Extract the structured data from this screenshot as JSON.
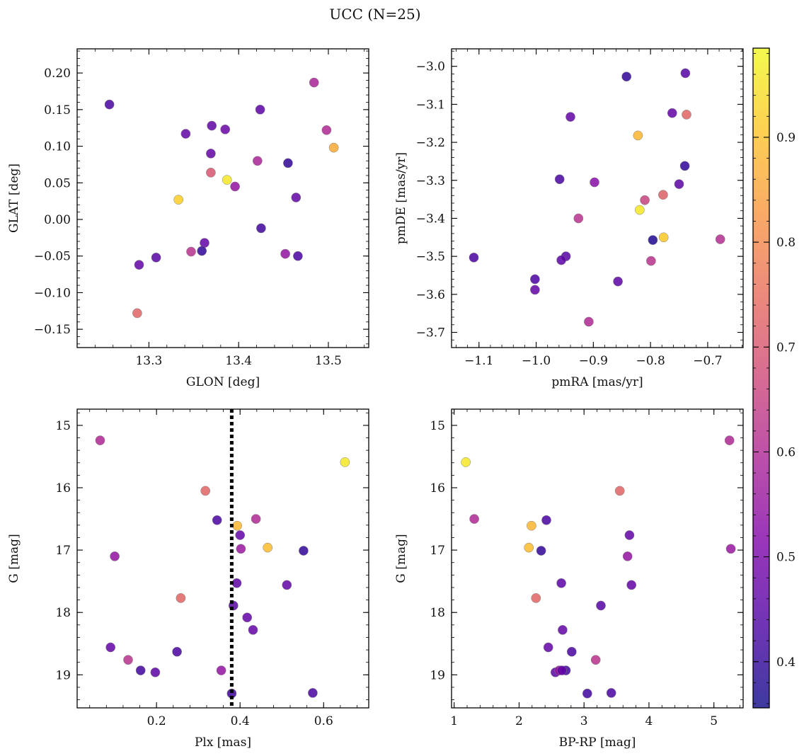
{
  "figure": {
    "title": "UCC (N=25)",
    "colormap": "plasma",
    "colorbar": {
      "vmin": 0.356,
      "vmax": 0.985,
      "ticks": [
        0.4,
        0.5,
        0.6,
        0.7,
        0.8,
        0.9
      ],
      "tick_labels": [
        "0.4",
        "0.5",
        "0.6",
        "0.7",
        "0.8",
        "0.9"
      ]
    }
  },
  "chart_data": [
    {
      "type": "scatter",
      "id": "glon-glat",
      "xlabel": "GLON [deg]",
      "ylabel": "GLAT [deg]",
      "xlim": [
        13.22,
        13.545
      ],
      "ylim": [
        -0.175,
        0.233
      ],
      "xticks": [
        13.3,
        13.4,
        13.5
      ],
      "xtick_labels": [
        "13.3",
        "13.4",
        "13.5"
      ],
      "xminor_step": 0.02,
      "yticks": [
        -0.15,
        -0.1,
        -0.05,
        0.0,
        0.05,
        0.1,
        0.15,
        0.2
      ],
      "ytick_labels": [
        "−0.15",
        "−0.10",
        "−0.05",
        "0.00",
        "0.05",
        "0.10",
        "0.15",
        "0.20"
      ],
      "yminor_step": 0.01,
      "points": [
        {
          "x": 13.256,
          "y": 0.157,
          "c": 0.43
        },
        {
          "x": 13.341,
          "y": 0.117,
          "c": 0.47
        },
        {
          "x": 13.37,
          "y": 0.128,
          "c": 0.47
        },
        {
          "x": 13.385,
          "y": 0.123,
          "c": 0.48
        },
        {
          "x": 13.424,
          "y": 0.15,
          "c": 0.46
        },
        {
          "x": 13.484,
          "y": 0.187,
          "c": 0.59
        },
        {
          "x": 13.498,
          "y": 0.122,
          "c": 0.6
        },
        {
          "x": 13.506,
          "y": 0.098,
          "c": 0.86
        },
        {
          "x": 13.369,
          "y": 0.09,
          "c": 0.47
        },
        {
          "x": 13.421,
          "y": 0.08,
          "c": 0.59
        },
        {
          "x": 13.455,
          "y": 0.077,
          "c": 0.4
        },
        {
          "x": 13.369,
          "y": 0.064,
          "c": 0.7
        },
        {
          "x": 13.387,
          "y": 0.054,
          "c": 0.96
        },
        {
          "x": 13.396,
          "y": 0.045,
          "c": 0.55
        },
        {
          "x": 13.333,
          "y": 0.027,
          "c": 0.92
        },
        {
          "x": 13.464,
          "y": 0.03,
          "c": 0.47
        },
        {
          "x": 13.425,
          "y": -0.012,
          "c": 0.42
        },
        {
          "x": 13.362,
          "y": -0.032,
          "c": 0.47
        },
        {
          "x": 13.347,
          "y": -0.044,
          "c": 0.62
        },
        {
          "x": 13.359,
          "y": -0.043,
          "c": 0.4
        },
        {
          "x": 13.452,
          "y": -0.047,
          "c": 0.55
        },
        {
          "x": 13.466,
          "y": -0.05,
          "c": 0.43
        },
        {
          "x": 13.308,
          "y": -0.052,
          "c": 0.45
        },
        {
          "x": 13.289,
          "y": -0.062,
          "c": 0.47
        },
        {
          "x": 13.287,
          "y": -0.128,
          "c": 0.73
        }
      ]
    },
    {
      "type": "scatter",
      "id": "pmra-pmde",
      "xlabel": "pmRA [mas/yr]",
      "ylabel": "pmDE [mas/yr]",
      "xlim": [
        -1.148,
        -0.638
      ],
      "ylim": [
        -3.74,
        -2.954
      ],
      "xticks": [
        -1.1,
        -1.0,
        -0.9,
        -0.8,
        -0.7
      ],
      "xtick_labels": [
        "−1.1",
        "−1.0",
        "−0.9",
        "−0.8",
        "−0.7"
      ],
      "xminor_step": 0.02,
      "yticks": [
        -3.7,
        -3.6,
        -3.5,
        -3.4,
        -3.3,
        -3.2,
        -3.1,
        -3.0
      ],
      "ytick_labels": [
        "−3.7",
        "−3.6",
        "−3.5",
        "−3.4",
        "−3.3",
        "−3.2",
        "−3.1",
        "−3.0"
      ],
      "yminor_step": 0.02,
      "points": [
        {
          "x": -0.842,
          "y": -3.027,
          "c": 0.4
        },
        {
          "x": -0.739,
          "y": -3.018,
          "c": 0.45
        },
        {
          "x": -0.94,
          "y": -3.133,
          "c": 0.47
        },
        {
          "x": -0.762,
          "y": -3.123,
          "c": 0.47
        },
        {
          "x": -0.737,
          "y": -3.127,
          "c": 0.73
        },
        {
          "x": -0.822,
          "y": -3.182,
          "c": 0.88
        },
        {
          "x": -0.959,
          "y": -3.297,
          "c": 0.43
        },
        {
          "x": -0.74,
          "y": -3.262,
          "c": 0.4
        },
        {
          "x": -0.898,
          "y": -3.305,
          "c": 0.53
        },
        {
          "x": -0.75,
          "y": -3.31,
          "c": 0.46
        },
        {
          "x": -0.778,
          "y": -3.338,
          "c": 0.72
        },
        {
          "x": -0.81,
          "y": -3.352,
          "c": 0.66
        },
        {
          "x": -0.819,
          "y": -3.378,
          "c": 0.96
        },
        {
          "x": -0.926,
          "y": -3.4,
          "c": 0.62
        },
        {
          "x": -0.777,
          "y": -3.45,
          "c": 0.91
        },
        {
          "x": -0.796,
          "y": -3.457,
          "c": 0.38
        },
        {
          "x": -0.678,
          "y": -3.455,
          "c": 0.61
        },
        {
          "x": -1.109,
          "y": -3.503,
          "c": 0.43
        },
        {
          "x": -0.948,
          "y": -3.5,
          "c": 0.45
        },
        {
          "x": -0.956,
          "y": -3.51,
          "c": 0.46
        },
        {
          "x": -0.799,
          "y": -3.512,
          "c": 0.62
        },
        {
          "x": -1.002,
          "y": -3.56,
          "c": 0.43
        },
        {
          "x": -0.857,
          "y": -3.566,
          "c": 0.46
        },
        {
          "x": -1.002,
          "y": -3.588,
          "c": 0.47
        },
        {
          "x": -0.908,
          "y": -3.672,
          "c": 0.6
        }
      ]
    },
    {
      "type": "scatter",
      "id": "plx-g",
      "xlabel": "Plx [mas]",
      "ylabel": "G [mag]",
      "xlim": [
        0.01,
        0.708
      ],
      "ylim": [
        19.53,
        14.74
      ],
      "y_inverted": true,
      "xticks": [
        0.2,
        0.4,
        0.6
      ],
      "xtick_labels": [
        "0.2",
        "0.4",
        "0.6"
      ],
      "xminor_step": 0.04,
      "yticks": [
        15,
        16,
        17,
        18,
        19
      ],
      "ytick_labels": [
        "15",
        "16",
        "17",
        "18",
        "19"
      ],
      "yminor_step": 0.2,
      "vline": {
        "x": 0.38,
        "style": "dotted",
        "color": "#000000"
      },
      "points": [
        {
          "x": 0.065,
          "y": 15.24,
          "c": 0.6
        },
        {
          "x": 0.651,
          "y": 15.59,
          "c": 0.96
        },
        {
          "x": 0.317,
          "y": 16.05,
          "c": 0.73
        },
        {
          "x": 0.345,
          "y": 16.52,
          "c": 0.43
        },
        {
          "x": 0.438,
          "y": 16.5,
          "c": 0.6
        },
        {
          "x": 0.393,
          "y": 16.61,
          "c": 0.88
        },
        {
          "x": 0.4,
          "y": 16.76,
          "c": 0.47
        },
        {
          "x": 0.466,
          "y": 16.96,
          "c": 0.89
        },
        {
          "x": 0.402,
          "y": 16.98,
          "c": 0.56
        },
        {
          "x": 0.552,
          "y": 17.01,
          "c": 0.4
        },
        {
          "x": 0.1,
          "y": 17.1,
          "c": 0.55
        },
        {
          "x": 0.392,
          "y": 17.53,
          "c": 0.46
        },
        {
          "x": 0.512,
          "y": 17.56,
          "c": 0.47
        },
        {
          "x": 0.258,
          "y": 17.77,
          "c": 0.73
        },
        {
          "x": 0.384,
          "y": 17.89,
          "c": 0.45
        },
        {
          "x": 0.417,
          "y": 18.08,
          "c": 0.47
        },
        {
          "x": 0.431,
          "y": 18.28,
          "c": 0.47
        },
        {
          "x": 0.09,
          "y": 18.56,
          "c": 0.47
        },
        {
          "x": 0.249,
          "y": 18.63,
          "c": 0.43
        },
        {
          "x": 0.132,
          "y": 18.76,
          "c": 0.62
        },
        {
          "x": 0.162,
          "y": 18.93,
          "c": 0.42
        },
        {
          "x": 0.197,
          "y": 18.96,
          "c": 0.46
        },
        {
          "x": 0.355,
          "y": 18.93,
          "c": 0.55
        },
        {
          "x": 0.38,
          "y": 19.3,
          "c": 0.42
        },
        {
          "x": 0.574,
          "y": 19.29,
          "c": 0.43
        }
      ]
    },
    {
      "type": "scatter",
      "id": "bprp-g",
      "xlabel": "BP-RP [mag]",
      "ylabel": "G [mag]",
      "xlim": [
        0.96,
        5.45
      ],
      "ylim": [
        19.53,
        14.74
      ],
      "y_inverted": true,
      "xticks": [
        1,
        2,
        3,
        4,
        5
      ],
      "xtick_labels": [
        "1",
        "2",
        "3",
        "4",
        "5"
      ],
      "xminor_step": 0.2,
      "yticks": [
        15,
        16,
        17,
        18,
        19
      ],
      "ytick_labels": [
        "15",
        "16",
        "17",
        "18",
        "19"
      ],
      "yminor_step": 0.2,
      "points": [
        {
          "x": 1.18,
          "y": 15.59,
          "c": 0.96
        },
        {
          "x": 5.24,
          "y": 15.24,
          "c": 0.6
        },
        {
          "x": 3.55,
          "y": 16.05,
          "c": 0.73
        },
        {
          "x": 1.31,
          "y": 16.5,
          "c": 0.6
        },
        {
          "x": 2.42,
          "y": 16.52,
          "c": 0.43
        },
        {
          "x": 2.19,
          "y": 16.61,
          "c": 0.88
        },
        {
          "x": 3.7,
          "y": 16.76,
          "c": 0.47
        },
        {
          "x": 2.15,
          "y": 16.96,
          "c": 0.89
        },
        {
          "x": 2.34,
          "y": 17.01,
          "c": 0.4
        },
        {
          "x": 5.26,
          "y": 16.98,
          "c": 0.56
        },
        {
          "x": 3.67,
          "y": 17.1,
          "c": 0.55
        },
        {
          "x": 2.65,
          "y": 17.53,
          "c": 0.46
        },
        {
          "x": 3.73,
          "y": 17.56,
          "c": 0.47
        },
        {
          "x": 2.26,
          "y": 17.77,
          "c": 0.73
        },
        {
          "x": 3.26,
          "y": 17.89,
          "c": 0.45
        },
        {
          "x": 2.67,
          "y": 18.28,
          "c": 0.47
        },
        {
          "x": 2.45,
          "y": 18.56,
          "c": 0.47
        },
        {
          "x": 2.81,
          "y": 18.63,
          "c": 0.43
        },
        {
          "x": 3.18,
          "y": 18.76,
          "c": 0.62
        },
        {
          "x": 2.56,
          "y": 18.96,
          "c": 0.46
        },
        {
          "x": 2.62,
          "y": 18.93,
          "c": 0.55
        },
        {
          "x": 2.72,
          "y": 18.93,
          "c": 0.42
        },
        {
          "x": 3.05,
          "y": 19.3,
          "c": 0.42
        },
        {
          "x": 3.42,
          "y": 19.29,
          "c": 0.43
        },
        {
          "x": 2.66,
          "y": 18.93,
          "c": 0.47
        }
      ]
    }
  ]
}
